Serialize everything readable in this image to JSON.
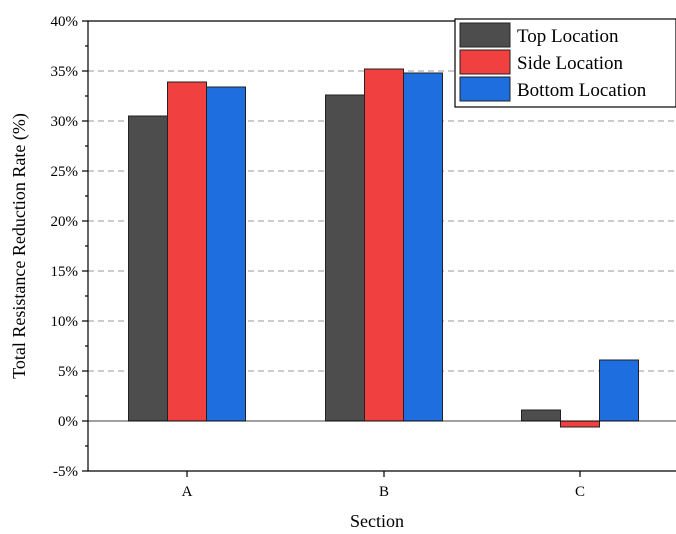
{
  "chart_data": {
    "type": "bar",
    "categories": [
      "A",
      "B",
      "C"
    ],
    "series": [
      {
        "name": "Top Location",
        "color": "#4d4d4d",
        "values": [
          30.5,
          32.6,
          1.1
        ]
      },
      {
        "name": "Side Location",
        "color": "#f04040",
        "values": [
          33.9,
          35.2,
          -0.6
        ]
      },
      {
        "name": "Bottom Location",
        "color": "#1f6ee0",
        "values": [
          33.4,
          34.8,
          6.1
        ]
      }
    ],
    "xlabel": "Section",
    "ylabel": "Total Resistance Reduction Rate (%)",
    "ylim": [
      -5,
      40
    ],
    "yticks": [
      -5,
      0,
      5,
      10,
      15,
      20,
      25,
      30,
      35,
      40
    ],
    "ytick_labels": [
      "-5%",
      "0%",
      "5%",
      "10%",
      "15%",
      "20%",
      "25%",
      "30%",
      "35%",
      "40%"
    ],
    "grid": "horizontal-dashed",
    "legend_position": "top-right"
  }
}
